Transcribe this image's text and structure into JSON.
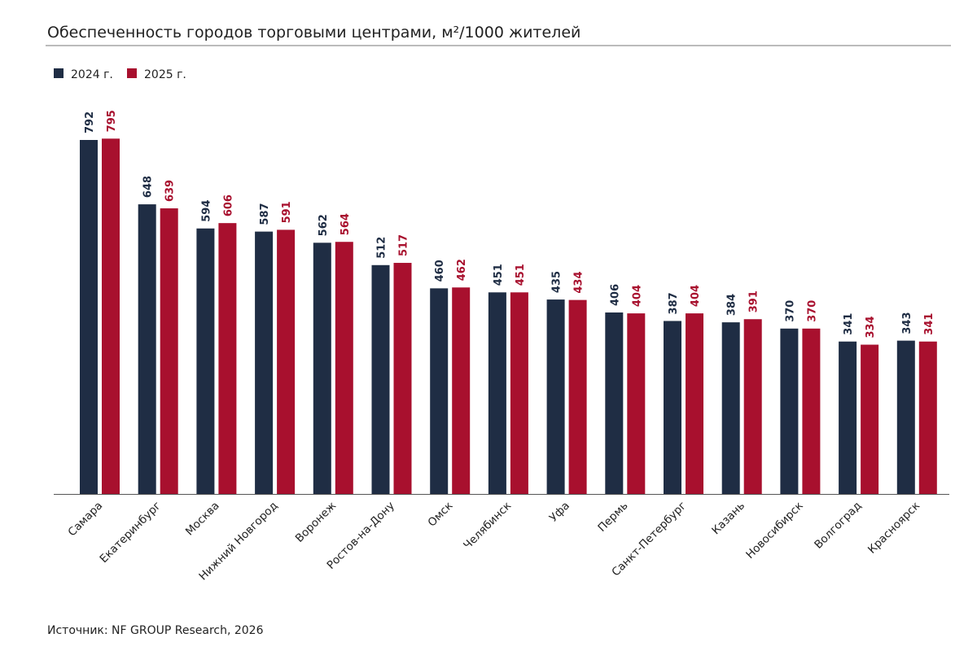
{
  "chart_data": {
    "type": "bar",
    "title": "Обеспеченность городов торговыми центрами, м²/1000 жителей",
    "source": "Источник: NF GROUP Research, 2026",
    "categories": [
      "Самара",
      "Екатеринбург",
      "Москва",
      "Нижний Новгород",
      "Воронеж",
      "Ростов-на-Дону",
      "Омск",
      "Челябинск",
      "Уфа",
      "Пермь",
      "Санкт-Петербург",
      "Казань",
      "Новосибирск",
      "Волгоград",
      "Красноярск"
    ],
    "series": [
      {
        "name": "2024 г.",
        "color": "#1f2d44",
        "values": [
          792,
          648,
          594,
          587,
          562,
          512,
          460,
          451,
          435,
          406,
          387,
          384,
          370,
          341,
          343
        ]
      },
      {
        "name": "2025 г.",
        "color": "#a8102e",
        "values": [
          795,
          639,
          606,
          591,
          564,
          517,
          462,
          451,
          434,
          404,
          404,
          391,
          370,
          334,
          341
        ]
      }
    ],
    "ylim": [
      0,
      800
    ],
    "grid": false,
    "legend": "top-left",
    "data_labels": true
  }
}
